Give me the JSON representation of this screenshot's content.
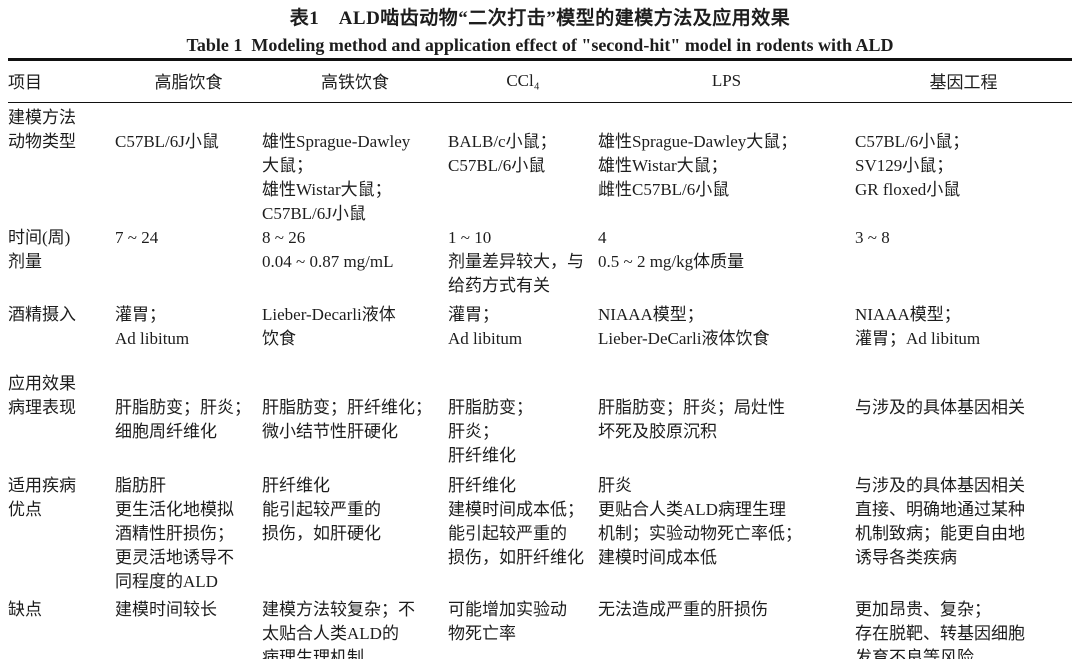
{
  "page": {
    "title_zh": "表1　ALD啮齿动物“二次打击”模型的建模方法及应用效果",
    "title_en": "Table 1  Modeling method and application effect of \"second-hit\" model in rodents with ALD"
  },
  "colors": {
    "background": "#ffffff",
    "text": "#1d1d1d",
    "rule": "#111111"
  },
  "table": {
    "columns": [
      "项目",
      "高脂饮食",
      "高铁饮食",
      "CCl₄",
      "LPS",
      "基因工程"
    ],
    "rows": [
      {
        "type": "section",
        "label": "建模方法"
      },
      {
        "type": "item",
        "label": "动物类型",
        "cells": [
          "C57BL/6J小鼠",
          "雄性Sprague-Dawley\n大鼠；\n雄性Wistar大鼠；\nC57BL/6J小鼠",
          "BALB/c小鼠；\nC57BL/6小鼠",
          "雄性Sprague-Dawley大鼠；\n雄性Wistar大鼠；\n雌性C57BL/6小鼠",
          "C57BL/6小鼠；\nSV129小鼠；\nGR floxed小鼠"
        ]
      },
      {
        "type": "item",
        "label": "时间(周)",
        "cells": [
          "7 ~ 24",
          "8 ~ 26",
          "1 ~ 10",
          "4",
          "3 ~ 8"
        ]
      },
      {
        "type": "item",
        "label": "剂量",
        "cells": [
          "",
          "0.04 ~ 0.87 mg/mL",
          "剂量差异较大，与\n给药方式有关",
          "0.5 ~ 2 mg/kg体质量",
          ""
        ]
      },
      {
        "type": "item",
        "label": "酒精摄入",
        "cells": [
          "灌胃；\nAd libitum",
          "Lieber-Decarli液体\n饮食",
          "灌胃；\nAd libitum",
          "NIAAA模型；\nLieber-DeCarli液体饮食",
          "NIAAA模型；\n灌胃；Ad libitum"
        ]
      },
      {
        "type": "section",
        "label": "应用效果"
      },
      {
        "type": "item",
        "label": "病理表现",
        "cells": [
          "肝脂肪变；肝炎；\n细胞周纤维化",
          "肝脂肪变；肝纤维化；\n微小结节性肝硬化",
          "肝脂肪变；\n肝炎；\n肝纤维化",
          "肝脂肪变；肝炎；局灶性\n坏死及胶原沉积",
          "与涉及的具体基因相关"
        ]
      },
      {
        "type": "item",
        "label": "适用疾病",
        "cells": [
          "脂肪肝",
          "肝纤维化",
          "肝纤维化",
          "肝炎",
          "与涉及的具体基因相关"
        ]
      },
      {
        "type": "item",
        "label": "优点",
        "cells": [
          "更生活化地模拟\n酒精性肝损伤；\n更灵活地诱导不\n同程度的ALD",
          "能引起较严重的\n损伤，如肝硬化",
          "建模时间成本低；\n能引起较严重的\n损伤，如肝纤维化",
          "更贴合人类ALD病理生理\n机制；实验动物死亡率低；\n建模时间成本低",
          "直接、明确地通过某种\n机制致病；能更自由地\n诱导各类疾病"
        ]
      },
      {
        "type": "item",
        "label": "缺点",
        "cells": [
          "建模时间较长",
          "建模方法较复杂；不\n太贴合人类ALD的\n病理生理机制",
          "可能增加实验动\n物死亡率",
          "无法造成严重的肝损伤",
          "更加昂贵、复杂；\n存在脱靶、转基因细胞\n发育不良等风险"
        ]
      }
    ]
  }
}
